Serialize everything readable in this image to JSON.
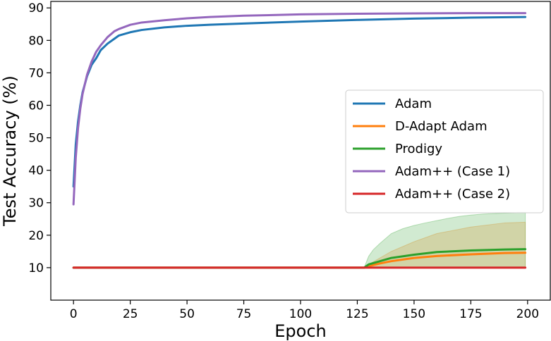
{
  "chart_data": {
    "type": "line",
    "title": "",
    "xlabel": "Epoch",
    "ylabel": "Test Accuracy (%)",
    "xlim": [
      -10,
      210
    ],
    "ylim": [
      0,
      92
    ],
    "xticks": [
      0,
      25,
      50,
      75,
      100,
      125,
      150,
      175,
      200
    ],
    "yticks": [
      10,
      20,
      30,
      40,
      50,
      60,
      70,
      80,
      90
    ],
    "grid": false,
    "legend": "center-right",
    "series": [
      {
        "name": "Adam",
        "color": "#1f77b4",
        "x": [
          0,
          1,
          2,
          3,
          4,
          5,
          6,
          8,
          10,
          12,
          15,
          18,
          20,
          25,
          30,
          40,
          50,
          60,
          75,
          100,
          125,
          150,
          175,
          199
        ],
        "y": [
          35,
          48,
          55,
          60,
          64,
          66.5,
          69,
          72.5,
          74.5,
          77,
          79,
          80.5,
          81.5,
          82.5,
          83.2,
          84,
          84.5,
          84.8,
          85.2,
          85.8,
          86.3,
          86.7,
          87,
          87.2
        ],
        "band": {
          "x": [],
          "lower": [],
          "upper": []
        }
      },
      {
        "name": "D-Adapt Adam",
        "color": "#ff7f0e",
        "x": [
          0,
          128,
          130,
          135,
          140,
          150,
          160,
          175,
          190,
          199
        ],
        "y": [
          10,
          10,
          10.5,
          11.3,
          12,
          13,
          13.6,
          14.1,
          14.5,
          14.6
        ],
        "band": {
          "x": [
            128,
            130,
            135,
            140,
            150,
            160,
            175,
            190,
            199
          ],
          "lower": [
            10,
            10,
            10,
            10,
            10,
            10,
            10,
            10,
            10
          ],
          "upper": [
            10,
            11,
            13,
            15,
            18,
            20.5,
            22.5,
            23.8,
            24
          ]
        }
      },
      {
        "name": "Prodigy",
        "color": "#2ca02c",
        "x": [
          0,
          128,
          130,
          135,
          140,
          150,
          160,
          175,
          190,
          199
        ],
        "y": [
          10,
          10,
          11,
          12,
          13,
          14,
          14.8,
          15.3,
          15.6,
          15.7
        ],
        "band": {
          "x": [
            128,
            130,
            132,
            135,
            140,
            145,
            150,
            155,
            160,
            165,
            170,
            175,
            180,
            190,
            199
          ],
          "lower": [
            10,
            10,
            10,
            10,
            10,
            10,
            10,
            10,
            10,
            10,
            10,
            10,
            10,
            10,
            10
          ],
          "upper": [
            10,
            13.5,
            15.5,
            17.5,
            20.5,
            22,
            23,
            23.8,
            24.5,
            25.2,
            25.8,
            26.2,
            26.5,
            26.8,
            27
          ]
        }
      },
      {
        "name": "Adam++ (Case 1)",
        "color": "#9467bd",
        "x": [
          0,
          1,
          2,
          3,
          4,
          5,
          6,
          8,
          10,
          12,
          15,
          18,
          20,
          25,
          30,
          40,
          50,
          60,
          75,
          100,
          125,
          150,
          175,
          199
        ],
        "y": [
          29.5,
          44,
          53,
          59,
          63.5,
          66.5,
          69.5,
          73.5,
          76.5,
          78.5,
          81,
          82.8,
          83.5,
          84.8,
          85.5,
          86.2,
          86.8,
          87.2,
          87.6,
          88,
          88.2,
          88.3,
          88.4,
          88.4
        ],
        "band": {
          "x": [],
          "lower": [],
          "upper": []
        }
      },
      {
        "name": "Adam++ (Case 2)",
        "color": "#d62728",
        "x": [
          0,
          199
        ],
        "y": [
          10,
          10
        ],
        "band": {
          "x": [],
          "lower": [],
          "upper": []
        }
      }
    ]
  }
}
